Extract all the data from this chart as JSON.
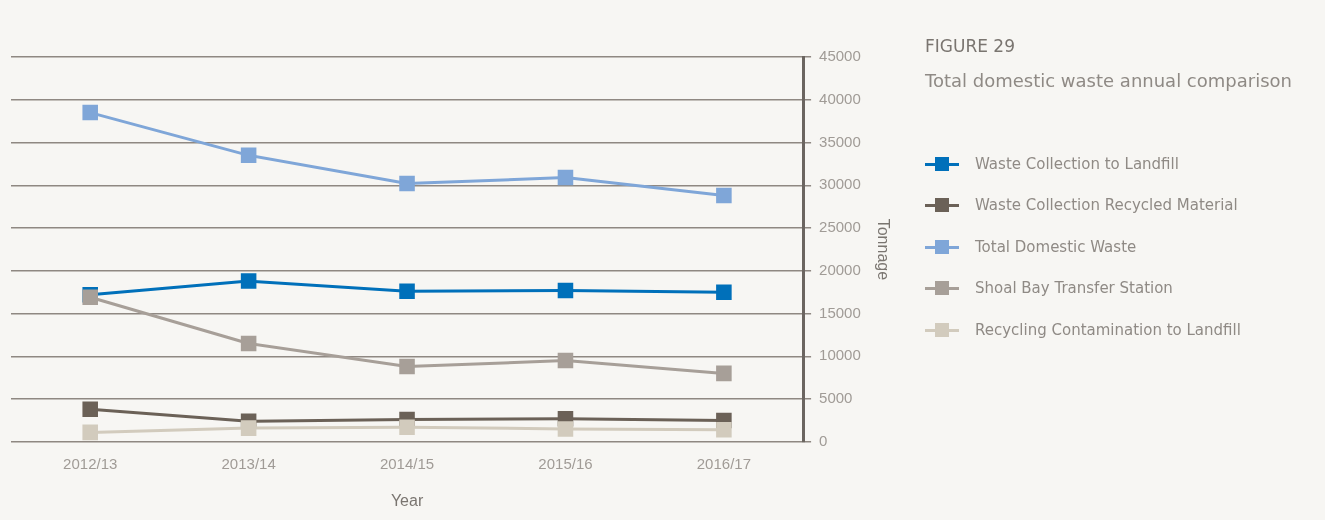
{
  "chart_data": {
    "type": "line",
    "title": "FIGURE 29",
    "subtitle": "Total domestic waste annual comparison",
    "xlabel": "Year",
    "ylabel": "Tonnage",
    "categories": [
      "2012/13",
      "2013/14",
      "2014/15",
      "2015/16",
      "2016/17"
    ],
    "series": [
      {
        "name": "Waste Collection to Landfill",
        "color": "#0070ba",
        "values": [
          17200,
          18800,
          17600,
          17700,
          17500
        ]
      },
      {
        "name": "Waste Collection Recycled Material",
        "color": "#6b6157",
        "values": [
          3800,
          2400,
          2600,
          2700,
          2500
        ]
      },
      {
        "name": "Total Domestic Waste",
        "color": "#7fa6d8",
        "values": [
          38500,
          33500,
          30200,
          30900,
          28800
        ]
      },
      {
        "name": "Shoal Bay Transfer Station",
        "color": "#a79f98",
        "values": [
          16900,
          11500,
          8800,
          9500,
          8000
        ]
      },
      {
        "name": "Recycling Contamination to Landfill",
        "color": "#d2cbbd",
        "values": [
          1100,
          1600,
          1700,
          1500,
          1400
        ]
      }
    ],
    "ylim": [
      0,
      45000
    ],
    "yticks": [
      0,
      5000,
      10000,
      15000,
      20000,
      25000,
      30000,
      35000,
      40000,
      45000
    ],
    "grid": "y",
    "legend": "right",
    "marker": "square",
    "line_style": "solid"
  }
}
